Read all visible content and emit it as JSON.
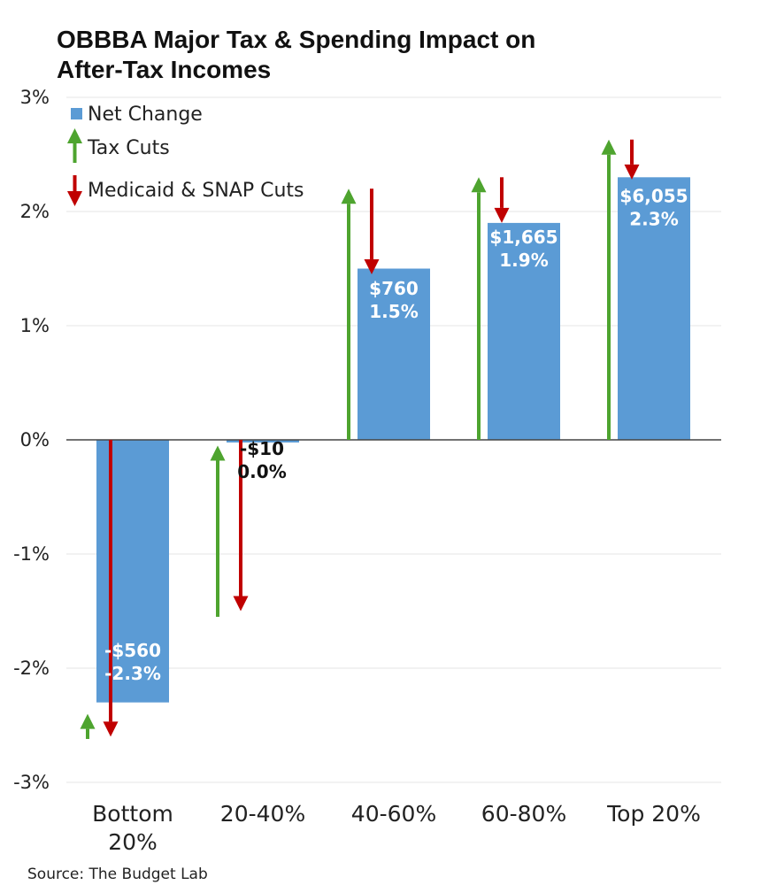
{
  "chart_data": {
    "type": "bar",
    "title": "OBBBA Major Tax & Spending Impact on After-Tax Incomes",
    "title_lines": [
      "OBBBA Major Tax & Spending Impact on",
      "After-Tax Incomes"
    ],
    "xlabel": "",
    "ylabel": "",
    "ylim": [
      -3,
      3
    ],
    "yticks": [
      3,
      2,
      1,
      0,
      -1,
      -2,
      -3
    ],
    "ytick_labels": [
      "3%",
      "2%",
      "1%",
      "0%",
      "-1%",
      "-2%",
      "-3%"
    ],
    "grid": true,
    "legend_position": "top-left",
    "categories": [
      "Bottom 20%",
      "20-40%",
      "40-60%",
      "60-80%",
      "Top 20%"
    ],
    "category_lines": [
      [
        "Bottom",
        "20%"
      ],
      [
        "20-40%"
      ],
      [
        "40-60%"
      ],
      [
        "60-80%"
      ],
      [
        "Top 20%"
      ]
    ],
    "series": [
      {
        "name": "Net Change",
        "color": "#5b9bd5",
        "values": [
          -2.3,
          -0.02,
          1.5,
          1.9,
          2.3
        ],
        "dollar_labels": [
          "-$560",
          "-$10",
          "$760",
          "$1,665",
          "$6,055"
        ],
        "percent_labels": [
          "-2.3%",
          "0.0%",
          "1.5%",
          "1.9%",
          "2.3%"
        ]
      },
      {
        "name": "Tax Cuts",
        "color": "#4ea42f",
        "from": [
          -2.62,
          -1.55,
          0,
          0,
          0
        ],
        "to": [
          -2.4,
          -0.05,
          2.2,
          2.3,
          2.63
        ]
      },
      {
        "name": "Medicaid & SNAP Cuts",
        "color": "#c00000",
        "from": [
          0,
          0,
          2.2,
          2.3,
          2.63
        ],
        "to": [
          -2.6,
          -1.5,
          1.45,
          1.9,
          2.28
        ]
      }
    ],
    "source": "Source: The Budget Lab"
  }
}
